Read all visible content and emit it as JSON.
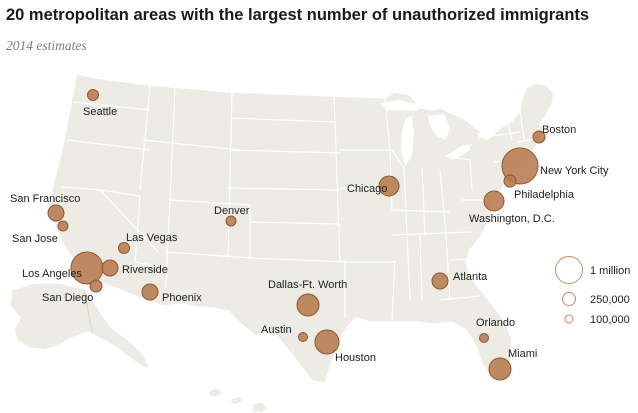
{
  "header": {
    "title": "20 metropolitan areas with the largest number of unauthorized immigrants",
    "subtitle": "2014 estimates"
  },
  "colors": {
    "land": "#ecebe4",
    "bubble": "#b77b4f",
    "legend_stroke": "#c98b5e"
  },
  "map": {
    "region": "United States (contiguous, Alaska, Hawaii)",
    "metros": [
      {
        "name": "Seattle",
        "lat": 47.6,
        "lon": -122.3
      },
      {
        "name": "San Francisco",
        "lat": 37.8,
        "lon": -122.4
      },
      {
        "name": "San Jose",
        "lat": 37.3,
        "lon": -121.9
      },
      {
        "name": "Los Angeles",
        "lat": 34.05,
        "lon": -118.25
      },
      {
        "name": "San Diego",
        "lat": 32.7,
        "lon": -117.2
      },
      {
        "name": "Riverside",
        "lat": 33.95,
        "lon": -117.4
      },
      {
        "name": "Las Vegas",
        "lat": 36.2,
        "lon": -115.1
      },
      {
        "name": "Phoenix",
        "lat": 33.45,
        "lon": -112.1
      },
      {
        "name": "Denver",
        "lat": 39.7,
        "lon": -105.0
      },
      {
        "name": "Dallas-Ft. Worth",
        "lat": 32.8,
        "lon": -96.9
      },
      {
        "name": "Austin",
        "lat": 30.3,
        "lon": -97.7
      },
      {
        "name": "Houston",
        "lat": 29.8,
        "lon": -95.4
      },
      {
        "name": "Chicago",
        "lat": 41.9,
        "lon": -87.6
      },
      {
        "name": "Atlanta",
        "lat": 33.75,
        "lon": -84.4
      },
      {
        "name": "Orlando",
        "lat": 28.5,
        "lon": -81.4
      },
      {
        "name": "Miami",
        "lat": 25.8,
        "lon": -80.2
      },
      {
        "name": "Washington, D.C.",
        "lat": 38.9,
        "lon": -77.0
      },
      {
        "name": "Philadelphia",
        "lat": 39.95,
        "lon": -75.2
      },
      {
        "name": "New York City",
        "lat": 40.7,
        "lon": -74.0
      },
      {
        "name": "Boston",
        "lat": 42.36,
        "lon": -71.06
      }
    ]
  },
  "chart_data": {
    "type": "scatter",
    "title": "20 metropolitan areas with the largest number of unauthorized immigrants",
    "subtitle": "2014 estimates",
    "size_unit": "unauthorized immigrants",
    "series": [
      {
        "values": [
          {
            "metro": "New York City",
            "value": 1150000
          },
          {
            "metro": "Los Angeles",
            "value": 1000000
          },
          {
            "metro": "Houston",
            "value": 575000
          },
          {
            "metro": "Dallas-Ft. Worth",
            "value": 475000
          },
          {
            "metro": "Miami",
            "value": 450000
          },
          {
            "metro": "Chicago",
            "value": 425000
          },
          {
            "metro": "Washington, D.C.",
            "value": 400000
          },
          {
            "metro": "Riverside",
            "value": 250000
          },
          {
            "metro": "Phoenix",
            "value": 250000
          },
          {
            "metro": "Atlanta",
            "value": 250000
          },
          {
            "metro": "San Francisco",
            "value": 240000
          },
          {
            "metro": "Philadelphia",
            "value": 160000
          },
          {
            "metro": "Boston",
            "value": 150000
          },
          {
            "metro": "San Diego",
            "value": 150000
          },
          {
            "metro": "Seattle",
            "value": 140000
          },
          {
            "metro": "Las Vegas",
            "value": 130000
          },
          {
            "metro": "San Jose",
            "value": 120000
          },
          {
            "metro": "Denver",
            "value": 110000
          },
          {
            "metro": "Austin",
            "value": 100000
          },
          {
            "metro": "Orlando",
            "value": 100000
          }
        ]
      }
    ],
    "legend": {
      "placement": "right",
      "entries": [
        {
          "label": "1 million",
          "value": 1000000
        },
        {
          "label": "250,000",
          "value": 250000
        },
        {
          "label": "100,000",
          "value": 100000
        }
      ]
    }
  }
}
